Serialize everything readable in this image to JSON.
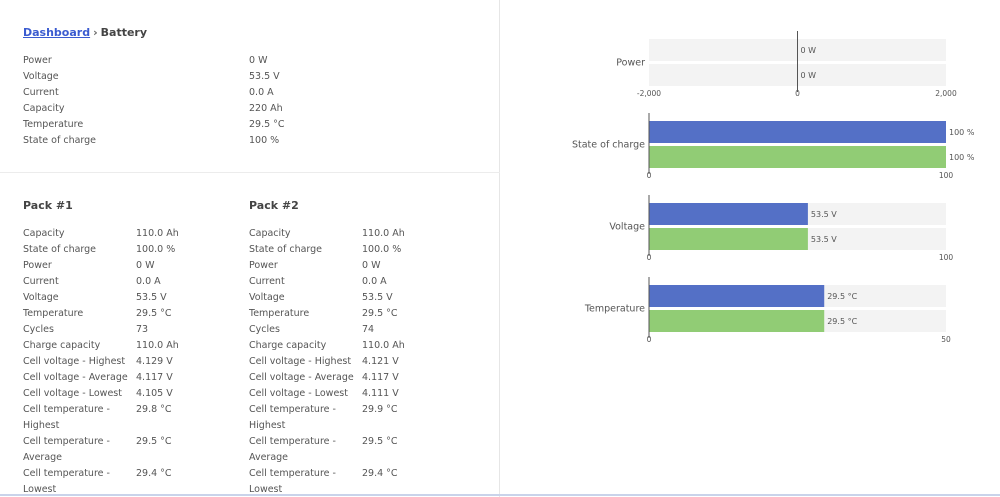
{
  "breadcrumb": {
    "link": "Dashboard",
    "separator": "›",
    "current": "Battery"
  },
  "summary": [
    {
      "label": "Power",
      "value": "0 W"
    },
    {
      "label": "Voltage",
      "value": "53.5 V"
    },
    {
      "label": "Current",
      "value": "0.0 A"
    },
    {
      "label": "Capacity",
      "value": "220 Ah"
    },
    {
      "label": "Temperature",
      "value": "29.5 °C"
    },
    {
      "label": "State of charge",
      "value": "100 %"
    }
  ],
  "packs": [
    {
      "title": "Pack #1",
      "rows": [
        {
          "label": "Capacity",
          "value": "110.0 Ah"
        },
        {
          "label": "State of charge",
          "value": "100.0 %"
        },
        {
          "label": "Power",
          "value": "0 W"
        },
        {
          "label": "Current",
          "value": "0.0 A"
        },
        {
          "label": "Voltage",
          "value": "53.5 V"
        },
        {
          "label": "Temperature",
          "value": "29.5 °C"
        },
        {
          "label": "Cycles",
          "value": "73"
        },
        {
          "label": "Charge capacity",
          "value": "110.0 Ah"
        },
        {
          "label": "Cell voltage - Highest",
          "value": "4.129 V"
        },
        {
          "label": "Cell voltage - Average",
          "value": "4.117 V"
        },
        {
          "label": "Cell voltage - Lowest",
          "value": "4.105 V"
        },
        {
          "label": "Cell temperature - Highest",
          "value": "29.8 °C"
        },
        {
          "label": "Cell temperature - Average",
          "value": "29.5 °C"
        },
        {
          "label": "Cell temperature - Lowest",
          "value": "29.4 °C"
        }
      ]
    },
    {
      "title": "Pack #2",
      "rows": [
        {
          "label": "Capacity",
          "value": "110.0 Ah"
        },
        {
          "label": "State of charge",
          "value": "100.0 %"
        },
        {
          "label": "Power",
          "value": "0 W"
        },
        {
          "label": "Current",
          "value": "0.0 A"
        },
        {
          "label": "Voltage",
          "value": "53.5 V"
        },
        {
          "label": "Temperature",
          "value": "29.5 °C"
        },
        {
          "label": "Cycles",
          "value": "74"
        },
        {
          "label": "Charge capacity",
          "value": "110.0 Ah"
        },
        {
          "label": "Cell voltage - Highest",
          "value": "4.121 V"
        },
        {
          "label": "Cell voltage - Average",
          "value": "4.117 V"
        },
        {
          "label": "Cell voltage - Lowest",
          "value": "4.111 V"
        },
        {
          "label": "Cell temperature - Highest",
          "value": "29.9 °C"
        },
        {
          "label": "Cell temperature - Average",
          "value": "29.5 °C"
        },
        {
          "label": "Cell temperature - Lowest",
          "value": "29.4 °C"
        }
      ]
    }
  ],
  "colors": {
    "pack1": "#5470c6",
    "pack2": "#91cc75",
    "track": "#f3f3f3",
    "link": "#3a5bd0"
  },
  "chart_data": [
    {
      "type": "bar",
      "category": "Power",
      "xlim": [
        -2000,
        2000
      ],
      "ticks": [
        "-2,000",
        "0",
        "2,000"
      ],
      "series": [
        {
          "value": 0,
          "label": "0 W"
        },
        {
          "value": 0,
          "label": "0 W"
        }
      ]
    },
    {
      "type": "bar",
      "category": "State of charge",
      "xlim": [
        0,
        100
      ],
      "ticks": [
        "0",
        "100"
      ],
      "series": [
        {
          "value": 100,
          "label": "100 %"
        },
        {
          "value": 100,
          "label": "100 %"
        }
      ]
    },
    {
      "type": "bar",
      "category": "Voltage",
      "xlim": [
        0,
        100
      ],
      "ticks": [
        "0",
        "100"
      ],
      "series": [
        {
          "value": 53.5,
          "label": "53.5 V"
        },
        {
          "value": 53.5,
          "label": "53.5 V"
        }
      ]
    },
    {
      "type": "bar",
      "category": "Temperature",
      "xlim": [
        0,
        50
      ],
      "ticks": [
        "0",
        "50"
      ],
      "series": [
        {
          "value": 29.5,
          "label": "29.5 °C"
        },
        {
          "value": 29.5,
          "label": "29.5 °C"
        }
      ]
    }
  ]
}
